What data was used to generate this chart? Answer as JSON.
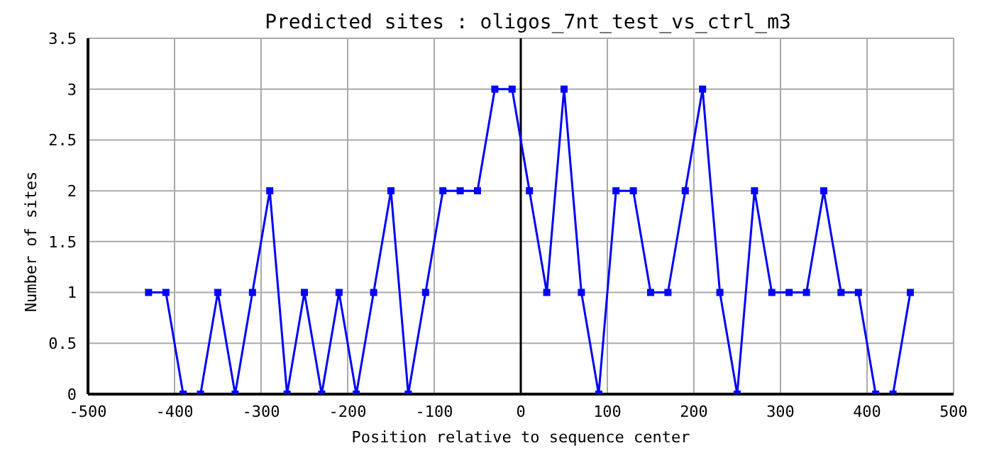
{
  "chart_data": {
    "type": "line",
    "title": "Predicted sites : oligos_7nt_test_vs_ctrl_m3",
    "xlabel": "Position relative to sequence center",
    "ylabel": "Number of sites",
    "x": [
      -430,
      -410,
      -390,
      -370,
      -350,
      -330,
      -310,
      -290,
      -270,
      -250,
      -230,
      -210,
      -190,
      -170,
      -150,
      -130,
      -110,
      -90,
      -70,
      -50,
      -30,
      -10,
      10,
      30,
      50,
      70,
      90,
      110,
      130,
      150,
      170,
      190,
      210,
      230,
      250,
      270,
      290,
      310,
      330,
      350,
      370,
      390,
      410,
      430,
      450
    ],
    "series": [
      {
        "color": "#0000ff",
        "values": [
          1,
          1,
          0,
          0,
          1,
          0,
          1,
          2,
          0,
          1,
          0,
          1,
          0,
          1,
          2,
          0,
          1,
          2,
          2,
          2,
          3,
          3,
          2,
          1,
          3,
          1,
          0,
          2,
          2,
          1,
          1,
          2,
          3,
          1,
          0,
          2,
          1,
          1,
          1,
          2,
          1,
          1,
          0,
          0,
          1
        ]
      }
    ],
    "xlim": [
      -500,
      500
    ],
    "xticks": [
      -500,
      -400,
      -300,
      -200,
      -100,
      0,
      100,
      200,
      300,
      400,
      500
    ],
    "ylim": [
      0,
      3.5
    ],
    "yticks": [
      0,
      0.5,
      1,
      1.5,
      2,
      2.5,
      3,
      3.5
    ],
    "ref_lines": [
      {
        "axis": "x",
        "value": 0,
        "color": "#000000"
      }
    ],
    "grid": true,
    "marker": "square",
    "line_style": "solid"
  }
}
